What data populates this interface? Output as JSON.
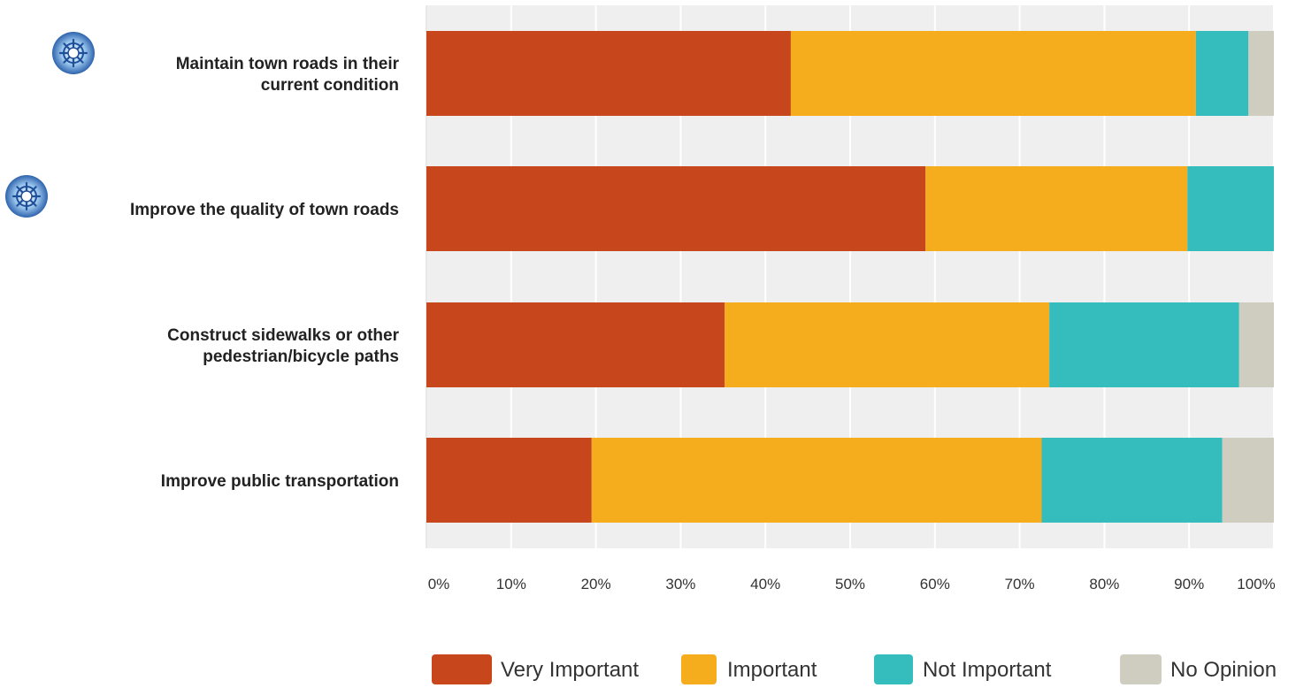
{
  "chart_data": {
    "type": "bar",
    "orientation": "horizontal",
    "stacked": true,
    "categories": [
      [
        "Maintain town roads in their",
        "current condition"
      ],
      [
        "Improve the quality of town roads"
      ],
      [
        "Construct sidewalks or other",
        "pedestrian/bicycle paths"
      ],
      [
        "Improve public transportation"
      ]
    ],
    "starred": [
      true,
      true,
      false,
      false
    ],
    "series": [
      {
        "name": "Very Important",
        "color": "#c8461b",
        "values": [
          43,
          58.9,
          35.2,
          19.5
        ]
      },
      {
        "name": "Important",
        "color": "#f5ad1e",
        "values": [
          47.8,
          30.9,
          38.3,
          53.1
        ]
      },
      {
        "name": "Not Important",
        "color": "#35bdbd",
        "values": [
          6.2,
          10.5,
          22.4,
          21.3
        ]
      },
      {
        "name": "No Opinion",
        "color": "#cfcdc0",
        "values": [
          3.1,
          0,
          4.5,
          6.1
        ]
      }
    ],
    "xlim": [
      0,
      100
    ],
    "xticks": [
      "0%",
      "10%",
      "20%",
      "30%",
      "40%",
      "50%",
      "60%",
      "70%",
      "80%",
      "90%",
      "100%"
    ],
    "grid": true,
    "legend_position": "bottom"
  }
}
